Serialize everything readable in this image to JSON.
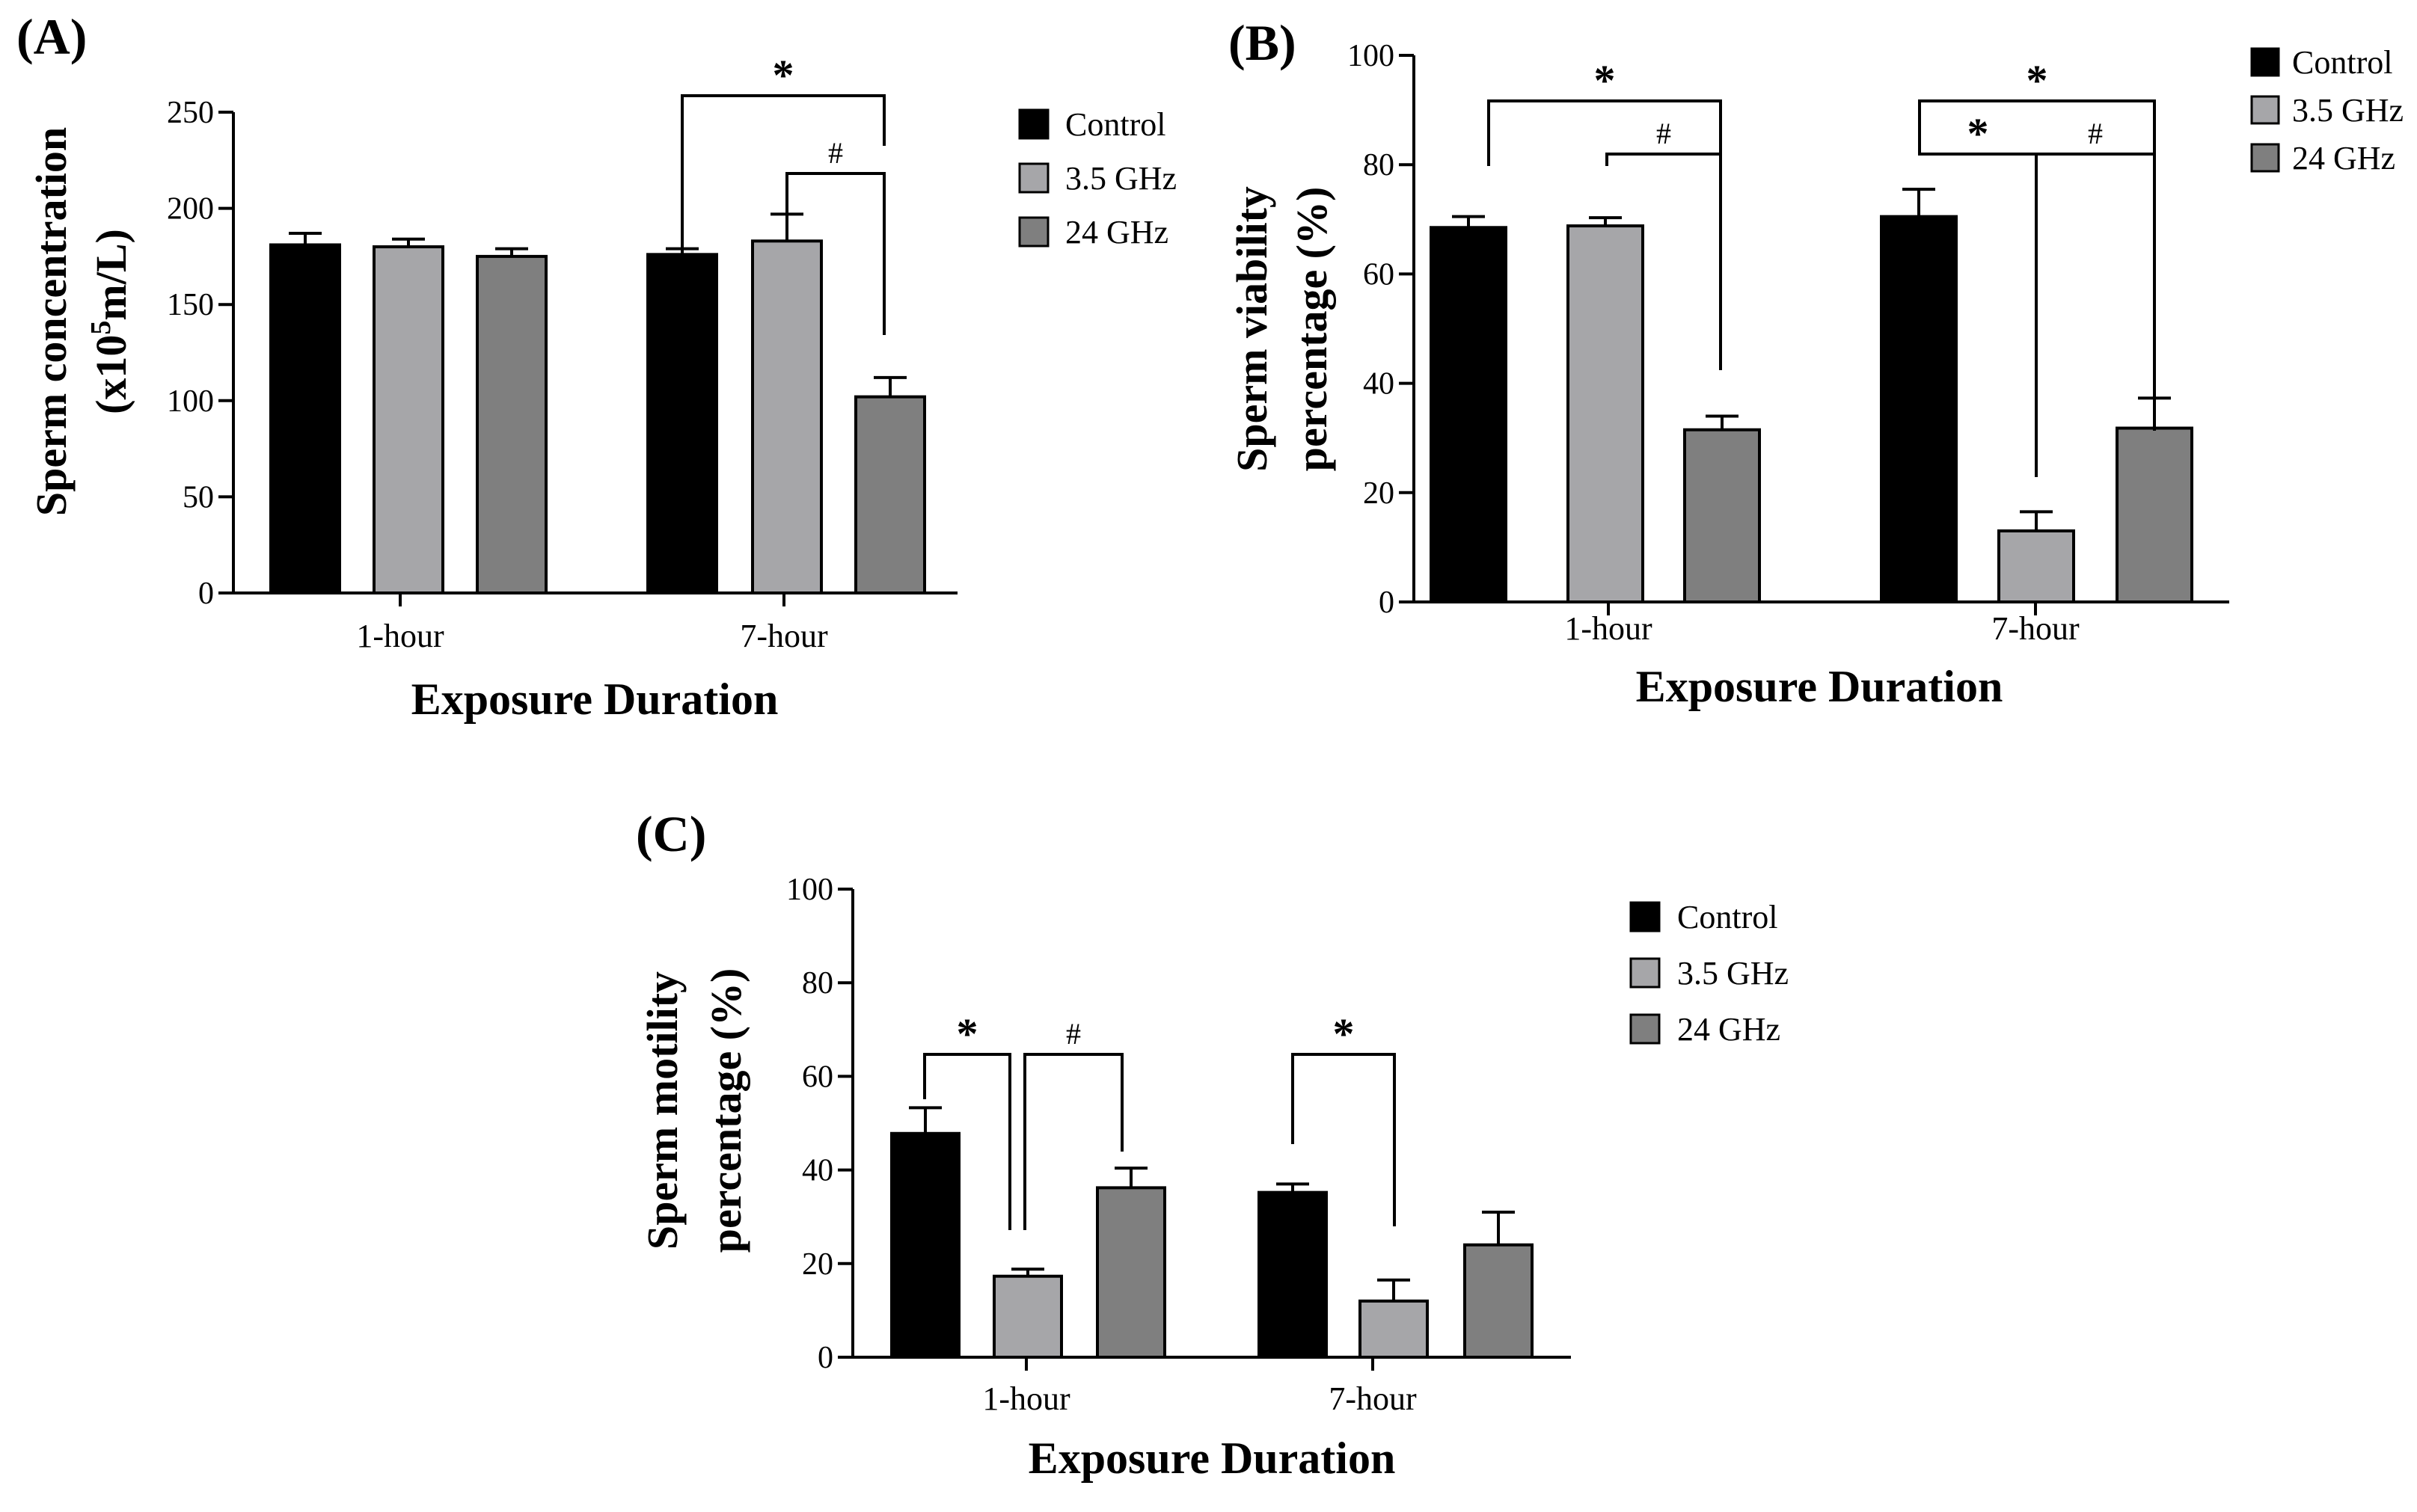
{
  "colors": {
    "Control": "#000000",
    "3.5 GHz": "#a6a6a9",
    "24 GHz": "#7f7f7f"
  },
  "chart_data": [
    {
      "id": "A",
      "type": "bar",
      "panel_label": "(A)",
      "categories": [
        "1-hour",
        "7-hour"
      ],
      "series": [
        {
          "name": "Control",
          "values": [
            181,
            176
          ],
          "errors": [
            6,
            3
          ]
        },
        {
          "name": "3.5 GHz",
          "values": [
            180,
            183
          ],
          "errors": [
            4,
            14
          ]
        },
        {
          "name": "24 GHz",
          "values": [
            175,
            102
          ],
          "errors": [
            4,
            10
          ]
        }
      ],
      "xlabel": "Exposure Duration",
      "ylabel_lines": [
        "Sperm  concentration",
        "(x10",
        "5",
        "m/L)"
      ],
      "ylim": [
        0,
        250
      ],
      "yticks": [
        0,
        50,
        100,
        150,
        200,
        250
      ],
      "legend": [
        "Control",
        "3.5 GHz",
        "24 GHz"
      ],
      "legend_position": "right",
      "significance": [
        {
          "category": "7-hour",
          "from": "Control",
          "to": "24 GHz",
          "symbol": "*"
        },
        {
          "category": "7-hour",
          "from": "3.5 GHz",
          "to": "24 GHz",
          "symbol": "#"
        }
      ]
    },
    {
      "id": "B",
      "type": "bar",
      "panel_label": "(B)",
      "categories": [
        "1-hour",
        "7-hour"
      ],
      "series": [
        {
          "name": "Control",
          "values": [
            68.5,
            70.5
          ],
          "errors": [
            2,
            5
          ]
        },
        {
          "name": "3.5 GHz",
          "values": [
            68.8,
            13
          ],
          "errors": [
            1.5,
            3.5
          ]
        },
        {
          "name": "24 GHz",
          "values": [
            31.5,
            31.8
          ],
          "errors": [
            2.5,
            5.5
          ]
        }
      ],
      "xlabel": "Exposure Duration",
      "ylabel_lines": [
        "Sperm viability",
        "percentage (%)"
      ],
      "ylim": [
        0,
        100
      ],
      "yticks": [
        0,
        20,
        40,
        60,
        80,
        100
      ],
      "legend": [
        "Control",
        "3.5 GHz",
        "24 GHz"
      ],
      "legend_position": "top-right",
      "significance": [
        {
          "category": "1-hour",
          "from": "Control",
          "to": "24 GHz",
          "symbol": "*"
        },
        {
          "category": "1-hour",
          "from": "3.5 GHz",
          "to": "24 GHz",
          "symbol": "#"
        },
        {
          "category": "7-hour",
          "from": "Control",
          "to": "24 GHz",
          "symbol": "*"
        },
        {
          "category": "7-hour",
          "from": "Control",
          "to": "3.5 GHz",
          "symbol": "*"
        },
        {
          "category": "7-hour",
          "from": "3.5 GHz",
          "to": "24 GHz",
          "symbol": "#"
        }
      ]
    },
    {
      "id": "C",
      "type": "bar",
      "panel_label": "(C)",
      "categories": [
        "1-hour",
        "7-hour"
      ],
      "series": [
        {
          "name": "Control",
          "values": [
            47.8,
            35.2
          ],
          "errors": [
            5.5,
            1.8
          ]
        },
        {
          "name": "3.5 GHz",
          "values": [
            17.3,
            12
          ],
          "errors": [
            1.5,
            4.5
          ]
        },
        {
          "name": "24 GHz",
          "values": [
            36.2,
            24
          ],
          "errors": [
            4.2,
            7
          ]
        }
      ],
      "xlabel": "Exposure Duration",
      "ylabel_lines": [
        "Sperm motility",
        "percentage (%)"
      ],
      "ylim": [
        0,
        100
      ],
      "yticks": [
        0,
        20,
        40,
        60,
        80,
        100
      ],
      "legend": [
        "Control",
        "3.5 GHz",
        "24 GHz"
      ],
      "legend_position": "right",
      "significance": [
        {
          "category": "1-hour",
          "from": "Control",
          "to": "3.5 GHz",
          "symbol": "*"
        },
        {
          "category": "1-hour",
          "from": "3.5 GHz",
          "to": "24 GHz",
          "symbol": "#"
        },
        {
          "category": "7-hour",
          "from": "Control",
          "to": "3.5 GHz",
          "symbol": "*"
        }
      ]
    }
  ]
}
